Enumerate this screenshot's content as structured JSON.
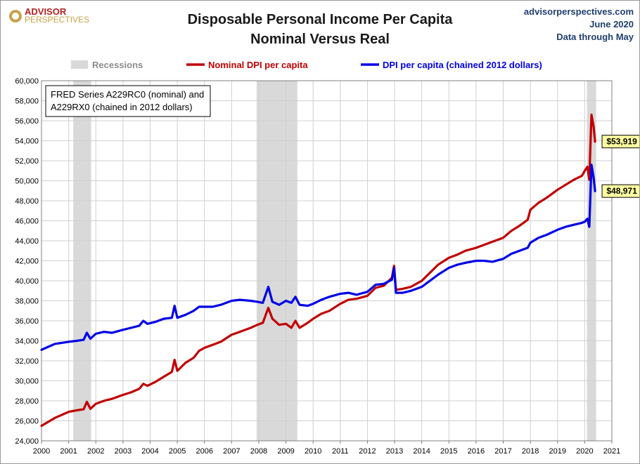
{
  "header": {
    "logo_line1": "ADVISOR",
    "logo_line2": "PERSPECTIVES",
    "title_line1": "Disposable Personal Income Per Capita",
    "title_line2": "Nominal Versus Real",
    "source_site": "advisorperspectives.com",
    "source_date": "June 2020",
    "source_note": "Data through May"
  },
  "note_box": {
    "line1": "FRED Series A229RC0 (nominal) and",
    "line2": "A229RX0 (chained in 2012 dollars)"
  },
  "colors": {
    "nominal": "#c00000",
    "real": "#0000e6",
    "recession": "#d9d9d9",
    "label_bg": "#ffffa0"
  },
  "chart_data": {
    "type": "line",
    "xlim": [
      2000,
      2021
    ],
    "ylim": [
      24000,
      60000
    ],
    "x_ticks": [
      "2000",
      "2001",
      "2002",
      "2003",
      "2004",
      "2005",
      "2006",
      "2007",
      "2008",
      "2009",
      "2010",
      "2011",
      "2012",
      "2013",
      "2014",
      "2015",
      "2016",
      "2017",
      "2018",
      "2019",
      "2020",
      "2021"
    ],
    "y_ticks": [
      "24,000",
      "26,000",
      "28,000",
      "30,000",
      "32,000",
      "34,000",
      "36,000",
      "38,000",
      "40,000",
      "42,000",
      "44,000",
      "46,000",
      "48,000",
      "50,000",
      "52,000",
      "54,000",
      "56,000",
      "58,000",
      "60,000"
    ],
    "legend": {
      "recessions": "Recessions",
      "nominal": "Nominal DPI per capita",
      "real": "DPI per capita (chained 2012 dollars)"
    },
    "recessions": [
      [
        2001.17,
        2001.83
      ],
      [
        2007.92,
        2009.42
      ],
      [
        2020.08,
        2020.42
      ]
    ],
    "series": [
      {
        "name": "Nominal DPI per capita",
        "points": [
          [
            2000.0,
            25500
          ],
          [
            2000.25,
            25900
          ],
          [
            2000.5,
            26300
          ],
          [
            2000.75,
            26600
          ],
          [
            2001.0,
            26900
          ],
          [
            2001.3,
            27050
          ],
          [
            2001.55,
            27150
          ],
          [
            2001.67,
            27900
          ],
          [
            2001.8,
            27200
          ],
          [
            2002.0,
            27700
          ],
          [
            2002.3,
            28000
          ],
          [
            2002.6,
            28200
          ],
          [
            2003.0,
            28600
          ],
          [
            2003.3,
            28850
          ],
          [
            2003.6,
            29200
          ],
          [
            2003.75,
            29700
          ],
          [
            2003.9,
            29500
          ],
          [
            2004.2,
            29900
          ],
          [
            2004.5,
            30400
          ],
          [
            2004.8,
            30900
          ],
          [
            2004.9,
            32100
          ],
          [
            2005.0,
            31000
          ],
          [
            2005.3,
            31800
          ],
          [
            2005.6,
            32300
          ],
          [
            2005.8,
            33000
          ],
          [
            2006.0,
            33300
          ],
          [
            2006.3,
            33600
          ],
          [
            2006.6,
            33900
          ],
          [
            2007.0,
            34600
          ],
          [
            2007.3,
            34900
          ],
          [
            2007.7,
            35300
          ],
          [
            2007.95,
            35600
          ],
          [
            2008.15,
            35800
          ],
          [
            2008.35,
            37300
          ],
          [
            2008.5,
            36200
          ],
          [
            2008.75,
            35600
          ],
          [
            2009.0,
            35700
          ],
          [
            2009.2,
            35300
          ],
          [
            2009.35,
            36000
          ],
          [
            2009.5,
            35300
          ],
          [
            2009.8,
            35800
          ],
          [
            2010.0,
            36200
          ],
          [
            2010.3,
            36700
          ],
          [
            2010.6,
            37000
          ],
          [
            2011.0,
            37700
          ],
          [
            2011.3,
            38100
          ],
          [
            2011.6,
            38200
          ],
          [
            2012.0,
            38500
          ],
          [
            2012.3,
            39300
          ],
          [
            2012.6,
            39500
          ],
          [
            2012.9,
            40300
          ],
          [
            2012.98,
            41500
          ],
          [
            2013.05,
            39100
          ],
          [
            2013.3,
            39200
          ],
          [
            2013.6,
            39400
          ],
          [
            2014.0,
            40000
          ],
          [
            2014.3,
            40800
          ],
          [
            2014.6,
            41600
          ],
          [
            2015.0,
            42300
          ],
          [
            2015.3,
            42600
          ],
          [
            2015.6,
            43000
          ],
          [
            2016.0,
            43300
          ],
          [
            2016.3,
            43600
          ],
          [
            2016.6,
            43900
          ],
          [
            2017.0,
            44300
          ],
          [
            2017.3,
            45000
          ],
          [
            2017.6,
            45500
          ],
          [
            2017.9,
            46100
          ],
          [
            2018.0,
            47100
          ],
          [
            2018.3,
            47800
          ],
          [
            2018.6,
            48300
          ],
          [
            2019.0,
            49100
          ],
          [
            2019.3,
            49600
          ],
          [
            2019.6,
            50100
          ],
          [
            2019.9,
            50500
          ],
          [
            2020.0,
            51000
          ],
          [
            2020.1,
            51400
          ],
          [
            2020.17,
            50100
          ],
          [
            2020.25,
            56600
          ],
          [
            2020.33,
            55400
          ],
          [
            2020.38,
            53919
          ]
        ]
      },
      {
        "name": "DPI per capita (chained 2012 dollars)",
        "points": [
          [
            2000.0,
            33100
          ],
          [
            2000.25,
            33400
          ],
          [
            2000.5,
            33700
          ],
          [
            2000.75,
            33800
          ],
          [
            2001.0,
            33900
          ],
          [
            2001.3,
            34000
          ],
          [
            2001.55,
            34100
          ],
          [
            2001.67,
            34800
          ],
          [
            2001.8,
            34200
          ],
          [
            2002.0,
            34700
          ],
          [
            2002.3,
            34900
          ],
          [
            2002.6,
            34800
          ],
          [
            2003.0,
            35100
          ],
          [
            2003.3,
            35300
          ],
          [
            2003.6,
            35500
          ],
          [
            2003.75,
            36000
          ],
          [
            2003.9,
            35700
          ],
          [
            2004.2,
            35900
          ],
          [
            2004.5,
            36200
          ],
          [
            2004.8,
            36300
          ],
          [
            2004.9,
            37500
          ],
          [
            2005.0,
            36300
          ],
          [
            2005.3,
            36600
          ],
          [
            2005.6,
            37000
          ],
          [
            2005.8,
            37400
          ],
          [
            2006.0,
            37400
          ],
          [
            2006.3,
            37400
          ],
          [
            2006.6,
            37600
          ],
          [
            2007.0,
            38000
          ],
          [
            2007.3,
            38100
          ],
          [
            2007.7,
            38000
          ],
          [
            2007.95,
            37900
          ],
          [
            2008.15,
            37800
          ],
          [
            2008.35,
            39400
          ],
          [
            2008.5,
            37900
          ],
          [
            2008.75,
            37600
          ],
          [
            2009.0,
            38000
          ],
          [
            2009.2,
            37800
          ],
          [
            2009.35,
            38400
          ],
          [
            2009.5,
            37600
          ],
          [
            2009.8,
            37500
          ],
          [
            2010.0,
            37700
          ],
          [
            2010.3,
            38100
          ],
          [
            2010.6,
            38400
          ],
          [
            2011.0,
            38700
          ],
          [
            2011.3,
            38800
          ],
          [
            2011.6,
            38600
          ],
          [
            2012.0,
            38900
          ],
          [
            2012.3,
            39600
          ],
          [
            2012.6,
            39700
          ],
          [
            2012.9,
            40100
          ],
          [
            2012.98,
            41300
          ],
          [
            2013.05,
            38800
          ],
          [
            2013.3,
            38800
          ],
          [
            2013.6,
            39000
          ],
          [
            2014.0,
            39400
          ],
          [
            2014.3,
            40000
          ],
          [
            2014.6,
            40600
          ],
          [
            2015.0,
            41300
          ],
          [
            2015.3,
            41600
          ],
          [
            2015.6,
            41800
          ],
          [
            2016.0,
            42000
          ],
          [
            2016.3,
            42000
          ],
          [
            2016.6,
            41900
          ],
          [
            2017.0,
            42200
          ],
          [
            2017.3,
            42700
          ],
          [
            2017.6,
            43000
          ],
          [
            2017.9,
            43300
          ],
          [
            2018.0,
            43800
          ],
          [
            2018.3,
            44300
          ],
          [
            2018.6,
            44600
          ],
          [
            2019.0,
            45100
          ],
          [
            2019.3,
            45400
          ],
          [
            2019.6,
            45600
          ],
          [
            2019.9,
            45800
          ],
          [
            2020.0,
            45900
          ],
          [
            2020.1,
            46200
          ],
          [
            2020.17,
            45400
          ],
          [
            2020.25,
            51600
          ],
          [
            2020.33,
            50300
          ],
          [
            2020.38,
            48971
          ]
        ]
      }
    ],
    "end_labels": [
      "$53,919",
      "$48,971"
    ]
  }
}
